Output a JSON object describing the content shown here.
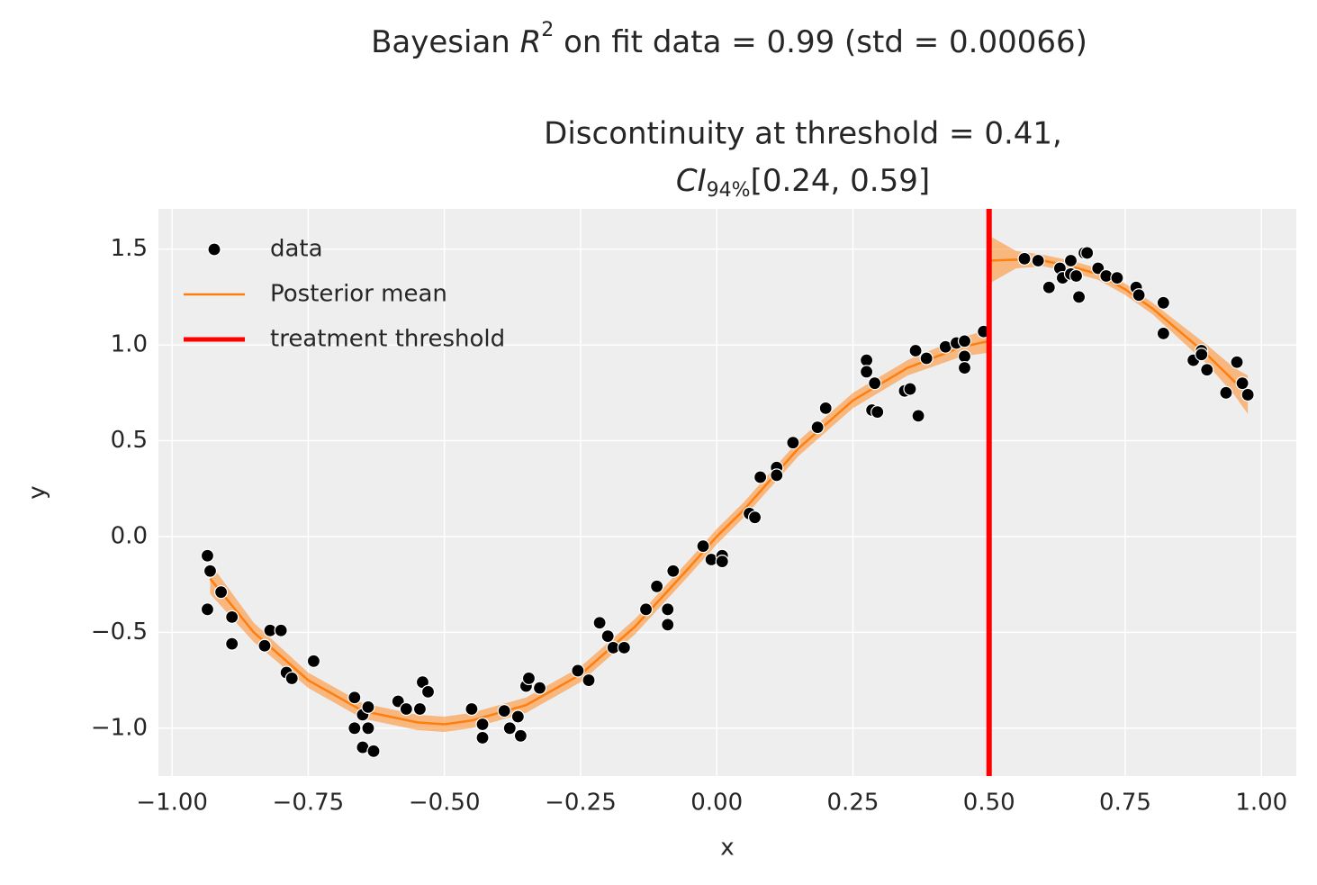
{
  "chart_data": {
    "type": "scatter",
    "title": {
      "before": "Bayesian ",
      "var": "R",
      "sup": "2",
      "after": " on fit data = 0.99 (std = 0.00066)"
    },
    "subtitle": {
      "line1": "Discontinuity at threshold = 0.41,",
      "var": "CI",
      "sub": "94%",
      "after": "[0.24, 0.59]"
    },
    "xlabel": "x",
    "ylabel": "y",
    "xlim": [
      -1.025,
      1.064
    ],
    "ylim": [
      -1.25,
      1.71
    ],
    "xticks": [
      {
        "value": -1.0,
        "label": "−1.00"
      },
      {
        "value": -0.75,
        "label": "−0.75"
      },
      {
        "value": -0.5,
        "label": "−0.50"
      },
      {
        "value": -0.25,
        "label": "−0.25"
      },
      {
        "value": 0.0,
        "label": "0.00"
      },
      {
        "value": 0.25,
        "label": "0.25"
      },
      {
        "value": 0.5,
        "label": "0.50"
      },
      {
        "value": 0.75,
        "label": "0.75"
      },
      {
        "value": 1.0,
        "label": "1.00"
      }
    ],
    "yticks": [
      {
        "value": -1.0,
        "label": "−1.0"
      },
      {
        "value": -0.5,
        "label": "−0.5"
      },
      {
        "value": 0.0,
        "label": "0.0"
      },
      {
        "value": 0.5,
        "label": "0.5"
      },
      {
        "value": 1.0,
        "label": "1.0"
      },
      {
        "value": 1.5,
        "label": "1.5"
      }
    ],
    "grid": true,
    "legend": "upper left",
    "series": [
      {
        "name": "data",
        "type": "scatter",
        "color": "#000000",
        "x": [
          -0.935,
          -0.93,
          -0.935,
          -0.91,
          -0.89,
          -0.89,
          -0.83,
          -0.82,
          -0.8,
          -0.79,
          -0.78,
          -0.74,
          -0.665,
          -0.665,
          -0.65,
          -0.65,
          -0.64,
          -0.64,
          -0.63,
          -0.585,
          -0.57,
          -0.545,
          -0.54,
          -0.53,
          -0.45,
          -0.43,
          -0.43,
          -0.39,
          -0.38,
          -0.365,
          -0.36,
          -0.35,
          -0.345,
          -0.325,
          -0.255,
          -0.235,
          -0.215,
          -0.2,
          -0.19,
          -0.17,
          -0.13,
          -0.11,
          -0.09,
          -0.09,
          -0.08,
          -0.025,
          -0.01,
          0.01,
          0.01,
          0.06,
          0.07,
          0.08,
          0.11,
          0.11,
          0.14,
          0.185,
          0.2,
          0.275,
          0.275,
          0.285,
          0.29,
          0.295,
          0.345,
          0.355,
          0.365,
          0.37,
          0.385,
          0.42,
          0.44,
          0.455,
          0.455,
          0.455,
          0.49,
          0.565,
          0.59,
          0.61,
          0.63,
          0.635,
          0.65,
          0.65,
          0.66,
          0.665,
          0.675,
          0.68,
          0.7,
          0.715,
          0.735,
          0.77,
          0.775,
          0.82,
          0.82,
          0.875,
          0.89,
          0.89,
          0.9,
          0.935,
          0.955,
          0.965,
          0.975
        ],
        "values": [
          -0.1,
          -0.18,
          -0.38,
          -0.29,
          -0.42,
          -0.56,
          -0.57,
          -0.49,
          -0.49,
          -0.71,
          -0.74,
          -0.65,
          -0.84,
          -1.0,
          -1.1,
          -0.93,
          -1.0,
          -0.89,
          -1.12,
          -0.86,
          -0.9,
          -0.9,
          -0.76,
          -0.81,
          -0.9,
          -0.98,
          -1.05,
          -0.91,
          -1.0,
          -0.94,
          -1.04,
          -0.78,
          -0.74,
          -0.79,
          -0.7,
          -0.75,
          -0.45,
          -0.52,
          -0.58,
          -0.58,
          -0.38,
          -0.26,
          -0.38,
          -0.46,
          -0.18,
          -0.05,
          -0.12,
          -0.1,
          -0.13,
          0.12,
          0.1,
          0.31,
          0.36,
          0.32,
          0.49,
          0.57,
          0.67,
          0.92,
          0.86,
          0.66,
          0.8,
          0.65,
          0.76,
          0.77,
          0.97,
          0.63,
          0.93,
          0.99,
          1.01,
          1.02,
          0.94,
          0.88,
          1.07,
          1.45,
          1.44,
          1.3,
          1.4,
          1.35,
          1.44,
          1.37,
          1.36,
          1.25,
          1.48,
          1.48,
          1.4,
          1.36,
          1.35,
          1.3,
          1.26,
          1.22,
          1.06,
          0.92,
          0.97,
          0.95,
          0.87,
          0.75,
          0.91,
          0.8,
          0.74
        ]
      },
      {
        "name": "Posterior mean",
        "type": "line",
        "color": "#ff7f0e",
        "x": [
          -0.93,
          -0.85,
          -0.75,
          -0.65,
          -0.55,
          -0.5,
          -0.45,
          -0.35,
          -0.25,
          -0.15,
          -0.05,
          0.0,
          0.05,
          0.15,
          0.25,
          0.35,
          0.45,
          0.5,
          0.5,
          0.5,
          0.55,
          0.6,
          0.65,
          0.7,
          0.75,
          0.8,
          0.85,
          0.9,
          0.95,
          0.975
        ],
        "values": [
          -0.22,
          -0.5,
          -0.75,
          -0.91,
          -0.97,
          -0.98,
          -0.96,
          -0.88,
          -0.72,
          -0.47,
          -0.16,
          0.0,
          0.14,
          0.46,
          0.71,
          0.88,
          0.99,
          1.02,
          null,
          1.44,
          1.445,
          1.44,
          1.41,
          1.37,
          1.29,
          1.19,
          1.07,
          0.95,
          0.81,
          0.74
        ],
        "lower": [
          -0.3,
          -0.55,
          -0.79,
          -0.95,
          -1.01,
          -1.02,
          -1.0,
          -0.92,
          -0.76,
          -0.51,
          -0.2,
          -0.04,
          0.1,
          0.42,
          0.67,
          0.84,
          0.94,
          0.96,
          null,
          1.32,
          1.4,
          1.41,
          1.38,
          1.34,
          1.26,
          1.16,
          1.03,
          0.9,
          0.74,
          0.64
        ],
        "upper": [
          -0.14,
          -0.45,
          -0.71,
          -0.87,
          -0.93,
          -0.94,
          -0.92,
          -0.84,
          -0.68,
          -0.43,
          -0.12,
          0.04,
          0.18,
          0.5,
          0.75,
          0.92,
          1.04,
          1.08,
          null,
          1.57,
          1.49,
          1.47,
          1.44,
          1.4,
          1.32,
          1.22,
          1.11,
          1.0,
          0.88,
          0.84
        ]
      },
      {
        "name": "treatment threshold",
        "type": "vline",
        "color": "#ff0000",
        "x": 0.5
      }
    ]
  }
}
